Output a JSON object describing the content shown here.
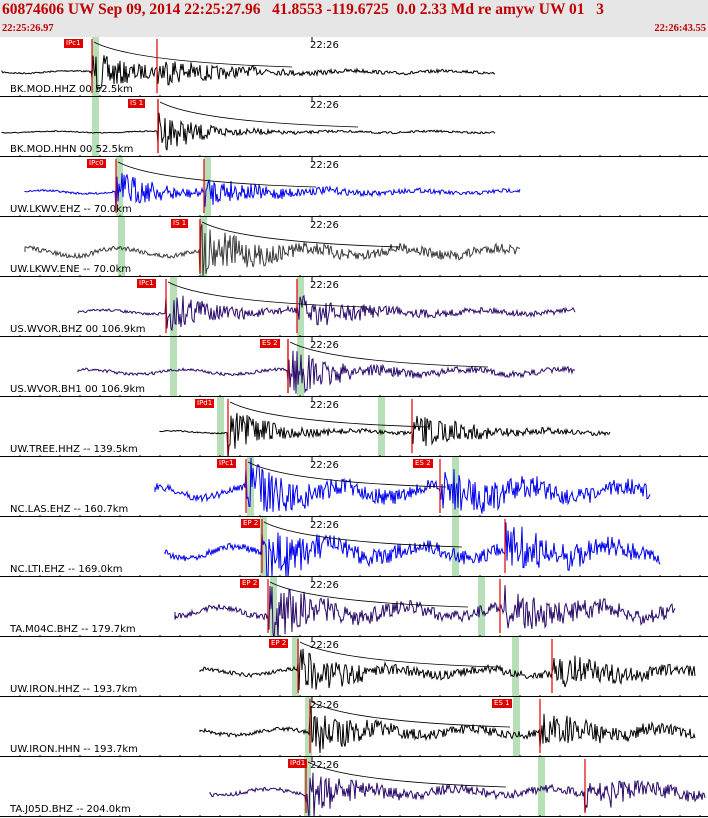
{
  "header": {
    "title": "60874606 UW Sep 09, 2014 22:25:27.96   41.8553 -119.6725  0.0 2.33 Md re amyw UW 01   3",
    "time_start": "22:25:26.97",
    "time_end": "22:26:43.55"
  },
  "colors": {
    "header_bg": "#e6e6e6",
    "header_text": "#c00000",
    "pick": "#e00000",
    "window": "#b8e0b8",
    "black": "#000000",
    "blue": "#0000ee",
    "purple": "#2a0a6a"
  },
  "time_axis": {
    "minute_label": "22:26"
  },
  "traces": [
    {
      "label": "BK.MOD.HHZ 00 52.5km",
      "color": "black",
      "pick": {
        "label": "IPc1"
      }
    },
    {
      "label": "BK.MOD.HHN 00 52.5km",
      "color": "black",
      "pick": {
        "label": "IS 1"
      }
    },
    {
      "label": "UW.LKWV.EHZ -- 70.0km",
      "color": "blue",
      "pick": {
        "label": "IPc0"
      }
    },
    {
      "label": "UW.LKWV.ENE -- 70.0km",
      "color": "gray",
      "pick": {
        "label": "IS 1"
      }
    },
    {
      "label": "US.WVOR.BHZ 00 106.9km",
      "color": "purple",
      "pick": {
        "label": "IPc1"
      }
    },
    {
      "label": "US.WVOR.BH1 00 106.9km",
      "color": "purple",
      "pick": {
        "label": "ES 2"
      }
    },
    {
      "label": "UW.TREE.HHZ -- 139.5km",
      "color": "black",
      "pick": {
        "label": "IPd1"
      }
    },
    {
      "label": "NC.LAS.EHZ -- 160.7km",
      "color": "blue",
      "pick": {
        "label": "IPc1",
        "label2": "ES 2"
      }
    },
    {
      "label": "NC.LTI.EHZ -- 169.0km",
      "color": "blue",
      "pick": {
        "label": "EP 2"
      }
    },
    {
      "label": "TA.M04C.BHZ -- 179.7km",
      "color": "purple",
      "pick": {
        "label": "EP 2"
      }
    },
    {
      "label": "UW.IRON.HHZ -- 193.7km",
      "color": "black",
      "pick": {
        "label": "EP 2"
      }
    },
    {
      "label": "UW.IRON.HHN -- 193.7km",
      "color": "black",
      "pick": {
        "label": "ES 1"
      }
    },
    {
      "label": "TA.J05D.BHZ -- 204.0km",
      "color": "purple",
      "pick": {
        "label": "IPd1"
      }
    }
  ]
}
